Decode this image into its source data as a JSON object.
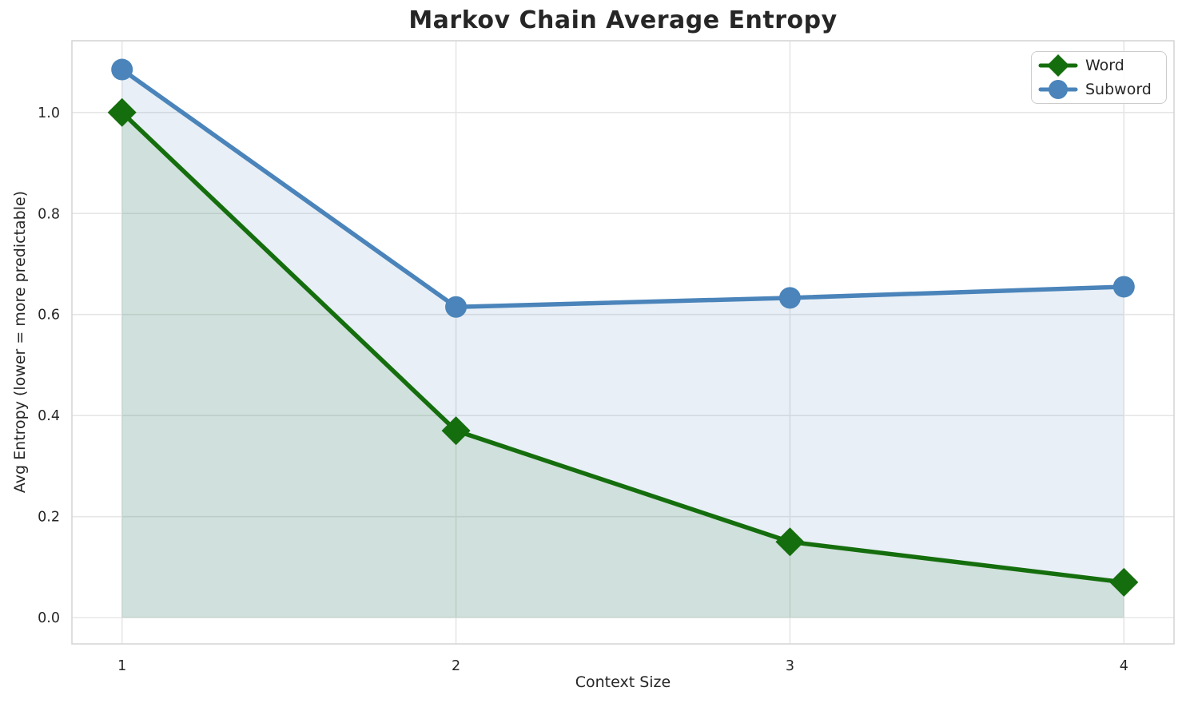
{
  "chart_data": {
    "type": "line",
    "title": "Markov Chain Average Entropy",
    "xlabel": "Context Size",
    "ylabel": "Avg Entropy (lower = more predictable)",
    "x": [
      1,
      2,
      3,
      4
    ],
    "series": [
      {
        "name": "Word",
        "values": [
          1.0,
          0.37,
          0.15,
          0.07
        ],
        "color": "#156e0d",
        "marker": "diamond",
        "fill_alpha": 0.11,
        "fill_to_zero": true
      },
      {
        "name": "Subword",
        "values": [
          1.085,
          0.615,
          0.633,
          0.655
        ],
        "color": "#4a84ba",
        "marker": "circle",
        "fill_alpha": 0.13,
        "fill_to_zero": true
      }
    ],
    "xticks": {
      "values": [
        1,
        2,
        3,
        4
      ],
      "labels": [
        "1",
        "2",
        "3",
        "4"
      ]
    },
    "yticks": {
      "values": [
        0.0,
        0.2,
        0.4,
        0.6,
        0.8,
        1.0
      ],
      "labels": [
        "0.0",
        "0.2",
        "0.4",
        "0.6",
        "0.8",
        "1.0"
      ]
    },
    "xlim": [
      0.85,
      4.15
    ],
    "ylim": [
      -0.052,
      1.142
    ],
    "grid": true,
    "grid_color": "#e6e6e6",
    "spine_color": "#d4d4d4",
    "tick_label_color": "#262626",
    "legend": {
      "position": "top-right",
      "entries": [
        "Word",
        "Subword"
      ]
    }
  }
}
